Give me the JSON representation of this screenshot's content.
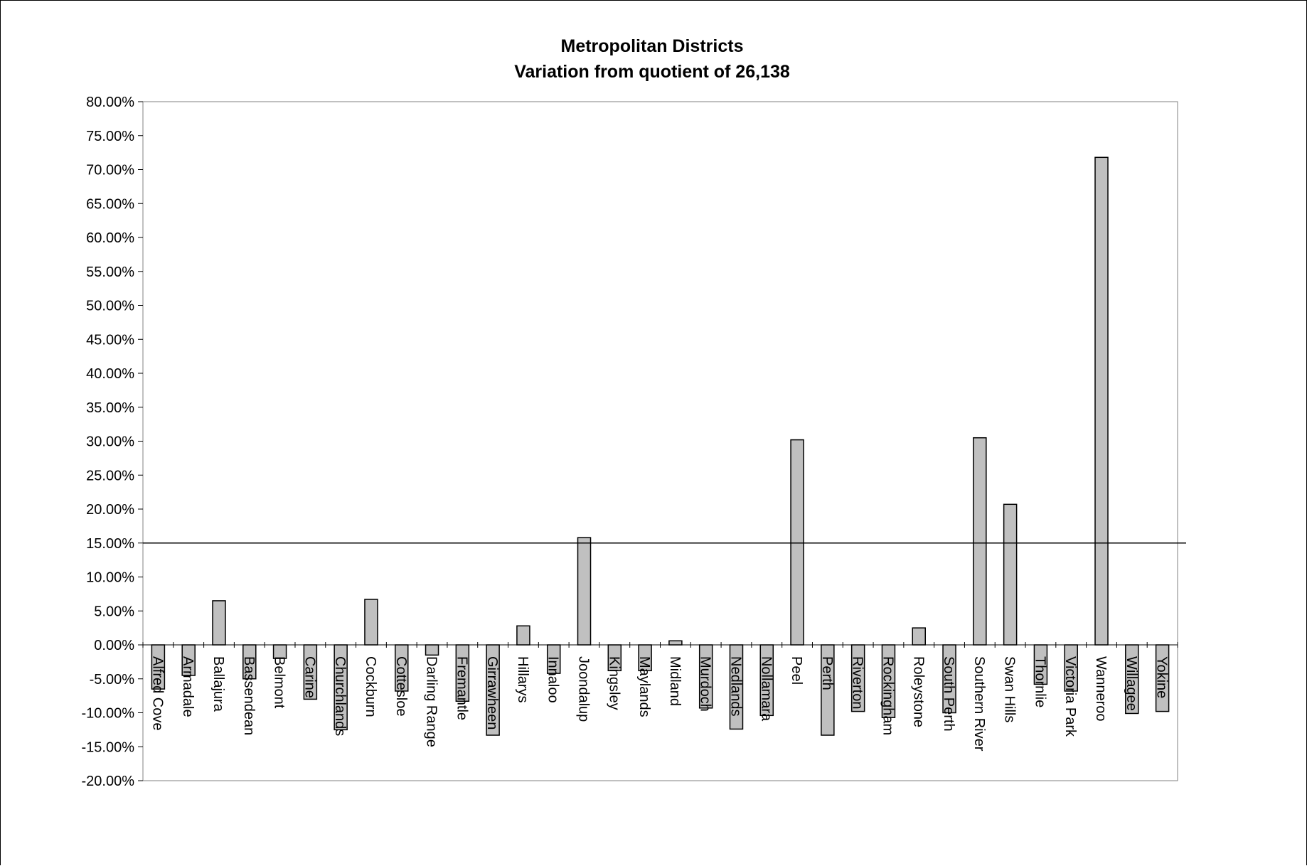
{
  "chart_data": {
    "type": "bar",
    "title": "Metropolitan Districts",
    "subtitle": "Variation from quotient of 26,138",
    "xlabel": "",
    "ylabel": "",
    "ylim": [
      -20,
      80
    ],
    "y_tick_step": 5,
    "y_tick_format": "percent_2dp",
    "grid": false,
    "legend": "none",
    "reference_line": 15,
    "bar_color": "#c0c0c0",
    "categories": [
      "Alfred Cove",
      "Armadale",
      "Ballajura",
      "Bassendean",
      "Belmont",
      "Carine",
      "Churchlands",
      "Cockburn",
      "Cottesloe",
      "Darling Range",
      "Fremantle",
      "Girrawheen",
      "Hillarys",
      "Innaloo",
      "Joondalup",
      "Kingsley",
      "Maylands",
      "Midland",
      "Murdoch",
      "Nedlands",
      "Nollamara",
      "Peel",
      "Perth",
      "Riverton",
      "Rockingham",
      "Roleystone",
      "South Perth",
      "Southern River",
      "Swan Hills",
      "Thornlie",
      "Victoria Park",
      "Wanneroo",
      "Willagee",
      "Yokine"
    ],
    "values": [
      -6.5,
      -4.5,
      6.5,
      -5.0,
      -2.0,
      -8.0,
      -12.5,
      6.7,
      -6.8,
      -1.5,
      -8.3,
      -13.3,
      2.8,
      -4.2,
      15.8,
      -3.8,
      -3.8,
      0.6,
      -9.3,
      -12.4,
      -10.4,
      30.2,
      -13.3,
      -9.8,
      -10.7,
      2.5,
      -10.0,
      30.5,
      20.7,
      -5.8,
      -6.8,
      71.8,
      -10.1,
      -9.8
    ]
  }
}
